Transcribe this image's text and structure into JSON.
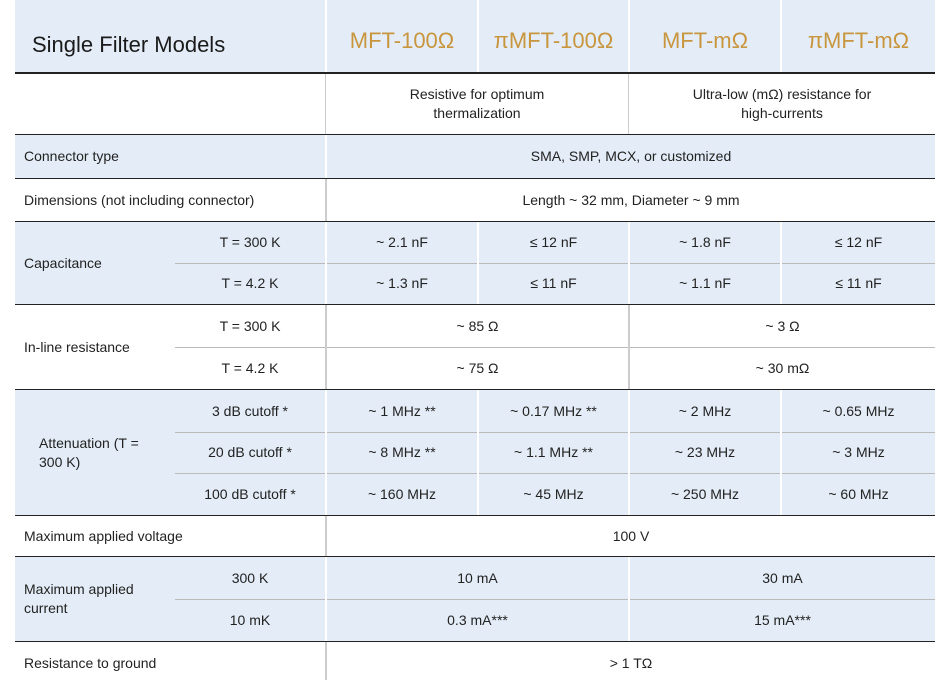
{
  "header": {
    "title": "Single Filter Models",
    "models": [
      "MFT-100Ω",
      "πMFT-100Ω",
      "MFT-mΩ",
      "πMFT-mΩ"
    ]
  },
  "description": [
    "Resistive for optimum thermalization",
    "Ultra-low (mΩ) resistance for high-currents"
  ],
  "rows": [
    {
      "label": "Connector type",
      "value": "SMA, SMP, MCX, or customized"
    },
    {
      "label": "Dimensions (not including connector)",
      "value": "Length ~ 32 mm, Diameter ~ 9 mm"
    },
    {
      "label": "Capacitance",
      "sub": [
        {
          "condition": "T = 300 K",
          "values": [
            "~ 2.1 nF",
            "≤ 12 nF",
            "~ 1.8 nF",
            "≤ 12 nF"
          ]
        },
        {
          "condition": "T = 4.2 K",
          "values": [
            "~ 1.3 nF",
            "≤ 11 nF",
            "~ 1.1 nF",
            "≤ 11 nF"
          ]
        }
      ]
    },
    {
      "label": "In-line resistance",
      "sub": [
        {
          "condition": "T = 300 K",
          "values": [
            "~ 85 Ω",
            "~ 3 Ω"
          ]
        },
        {
          "condition": "T = 4.2 K",
          "values": [
            "~ 75 Ω",
            "~ 30 mΩ"
          ]
        }
      ]
    },
    {
      "label": "Attenuation (T = 300 K)",
      "sub": [
        {
          "condition": "3 dB cutoff *",
          "values": [
            "~ 1 MHz **",
            "~ 0.17 MHz **",
            "~ 2 MHz",
            "~ 0.65 MHz"
          ]
        },
        {
          "condition": "20 dB cutoff *",
          "values": [
            "~ 8 MHz **",
            "~ 1.1 MHz **",
            "~ 23 MHz",
            "~ 3 MHz"
          ]
        },
        {
          "condition": "100 dB cutoff *",
          "values": [
            "~ 160 MHz",
            "~ 45 MHz",
            "~ 250 MHz",
            "~ 60 MHz"
          ]
        }
      ]
    },
    {
      "label": "Maximum applied voltage",
      "value": "100 V"
    },
    {
      "label": "Maximum applied current",
      "sub": [
        {
          "condition": "300 K",
          "values": [
            "10 mA",
            "30 mA"
          ]
        },
        {
          "condition": "10 mK",
          "values": [
            "0.3 mA***",
            "15 mA***"
          ]
        }
      ]
    },
    {
      "label": "Resistance to ground",
      "value": "> 1 TΩ"
    }
  ]
}
